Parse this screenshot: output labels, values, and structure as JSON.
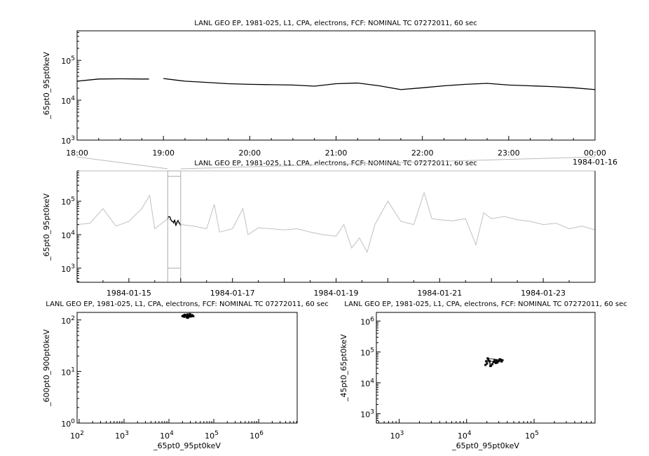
{
  "chart_data": [
    {
      "id": "timeseries-zoom",
      "type": "line",
      "title": "LANL GEO EP, 1981-025, L1, CPA, electrons, FCF: NOMINAL TC 07272011, 60 sec",
      "ylabel": "_65pt0_95pt0keV",
      "yscale": "log",
      "ylim": [
        1000,
        550000
      ],
      "xlim": [
        "1984-01-15 18:00",
        "1984-01-16 00:00"
      ],
      "x_tick_labels": [
        "18:00",
        "19:00",
        "20:00",
        "21:00",
        "22:00",
        "23:00",
        "00:00"
      ],
      "x_date_label": "1984-01-16",
      "y_tick_labels": [
        "10^3",
        "10^4",
        "10^5"
      ],
      "color": "#000000",
      "x": [
        "18:00",
        "18:15",
        "18:30",
        "18:45",
        "18:50",
        "18:53",
        "19:00",
        "19:15",
        "19:30",
        "19:45",
        "20:00",
        "20:15",
        "20:30",
        "20:45",
        "21:00",
        "21:15",
        "21:30",
        "21:45",
        "22:00",
        "22:15",
        "22:30",
        "22:45",
        "23:00",
        "23:15",
        "23:30",
        "23:45",
        "24:00"
      ],
      "y": [
        30000,
        34000,
        34500,
        34000,
        34000,
        null,
        35000,
        30000,
        28000,
        26000,
        25000,
        24500,
        24000,
        22500,
        26000,
        27000,
        23000,
        18500,
        20500,
        23000,
        25000,
        26500,
        24000,
        23000,
        22000,
        20500,
        18500
      ]
    },
    {
      "id": "timeseries-overview",
      "type": "line",
      "title": "LANL GEO EP, 1981-025, L1, CPA, electrons, FCF: NOMINAL TC 07272011, 60 sec",
      "ylabel": "_65pt0_95pt0keV",
      "yscale": "log",
      "ylim": [
        380,
        800000
      ],
      "xlim": [
        "1984-01-14",
        "1984-01-24"
      ],
      "x_tick_labels": [
        "1984-01-15",
        "1984-01-17",
        "1984-01-19",
        "1984-01-21",
        "1984-01-23"
      ],
      "y_tick_labels": [
        "10^3",
        "10^4",
        "10^5"
      ],
      "color": "#c0c0c0",
      "highlight_color": "#000000",
      "highlight_range": [
        "1984-01-15 18:00",
        "1984-01-16 00:00"
      ],
      "x_days": [
        14.0,
        14.25,
        14.5,
        14.75,
        15.0,
        15.25,
        15.4,
        15.5,
        15.75,
        16.0,
        16.25,
        16.5,
        16.65,
        16.75,
        17.0,
        17.2,
        17.3,
        17.5,
        17.75,
        18.0,
        18.25,
        18.5,
        18.75,
        19.0,
        19.15,
        19.3,
        19.45,
        19.6,
        19.75,
        20.0,
        20.25,
        20.5,
        20.7,
        20.85,
        21.0,
        21.25,
        21.5,
        21.7,
        21.85,
        22.0,
        22.25,
        22.5,
        22.75,
        23.0,
        23.25,
        23.5,
        23.75,
        24.0
      ],
      "y": [
        20000,
        22000,
        60000,
        18000,
        25000,
        60000,
        150000,
        15000,
        30000,
        20000,
        18000,
        15000,
        80000,
        12000,
        15000,
        60000,
        10000,
        16000,
        15000,
        14000,
        15000,
        12000,
        10000,
        9000,
        20000,
        4000,
        8000,
        3000,
        20000,
        100000,
        25000,
        20000,
        180000,
        30000,
        28000,
        26000,
        30000,
        5000,
        45000,
        30000,
        35000,
        28000,
        25000,
        20000,
        22000,
        15000,
        18000,
        14000
      ]
    },
    {
      "id": "scatter-600-900",
      "type": "scatter",
      "title": "LANL GEO EP, 1981-025, L1, CPA, electrons, FCF: NOMINAL TC 07272011, 60 sec",
      "xlabel": "_65pt0_95pt0keV",
      "ylabel": "_600pt0_900pt0keV",
      "xscale": "log",
      "yscale": "log",
      "xlim": [
        90,
        7200000
      ],
      "ylim": [
        1,
        140
      ],
      "x_tick_labels": [
        "10^2",
        "10^3",
        "10^4",
        "10^5",
        "10^6"
      ],
      "y_tick_labels": [
        "10^0",
        "10^1",
        "10^2"
      ],
      "x": [
        20000,
        21000,
        22000,
        23000,
        24000,
        25000,
        26000,
        27000,
        28000,
        29000,
        30000,
        31000,
        33000,
        35000,
        22500,
        26500,
        29500,
        32000
      ],
      "y": [
        118,
        122,
        115,
        125,
        120,
        112,
        128,
        119,
        123,
        116,
        121,
        117,
        124,
        118,
        126,
        110,
        130,
        120
      ]
    },
    {
      "id": "scatter-45-65",
      "type": "scatter",
      "title": "LANL GEO EP, 1981-025, L1, CPA, electrons, FCF: NOMINAL TC 07272011, 60 sec",
      "xlabel": "_65pt0_95pt0keV",
      "ylabel": "_45pt0_65pt0keV",
      "xscale": "log",
      "yscale": "log",
      "xlim": [
        460,
        800000
      ],
      "ylim": [
        500,
        1900000
      ],
      "x_tick_labels": [
        "10^3",
        "10^4",
        "10^5"
      ],
      "y_tick_labels": [
        "10^3",
        "10^4",
        "10^5",
        "10^6"
      ],
      "x": [
        19000,
        20000,
        21000,
        22000,
        23000,
        24000,
        25000,
        26000,
        27000,
        28000,
        30000,
        32000,
        34000,
        20500,
        22500,
        25500,
        28500,
        31000,
        33000,
        19500
      ],
      "y": [
        38000,
        42000,
        58000,
        50000,
        36000,
        40000,
        47000,
        55000,
        44000,
        52000,
        50000,
        56000,
        54000,
        62000,
        35000,
        48000,
        45000,
        58000,
        49000,
        50000
      ]
    }
  ]
}
